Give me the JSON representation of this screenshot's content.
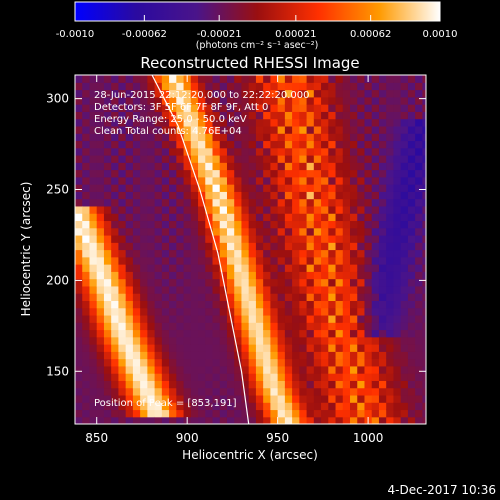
{
  "chart_data": {
    "type": "heatmap",
    "title": "Reconstructed RHESSI Image",
    "xlabel": "Heliocentric X (arcsec)",
    "ylabel": "Heliocentric Y (arcsec)",
    "xlim": [
      838,
      1032
    ],
    "ylim": [
      121,
      313
    ],
    "x_ticks": [
      850,
      900,
      950,
      1000
    ],
    "y_ticks": [
      150,
      200,
      250,
      300
    ],
    "info_lines": [
      "28-Jun-2015 22:12:20.000 to 22:22:20.000",
      "Detectors: 3F 5F 6F 7F 8F 9F, Att 0",
      "Energy Range: 25.0 - 50.0 keV",
      "Clean      Total counts: 4.76E+04"
    ],
    "peak_label": "Position of Peak = [853,191]",
    "peak_position": [
      853,
      191
    ],
    "colorbar": {
      "range": [
        -0.001,
        0.001
      ],
      "tick_labels": [
        "-0.0010",
        "-0.00062",
        "-0.00021",
        "0.00021",
        "0.00062",
        "0.0010"
      ],
      "units_label": "(photons cm⁻² s⁻¹ asec⁻²)",
      "colors": [
        "#0000ff",
        "#2a0aa0",
        "#4a148a",
        "#9a0f10",
        "#ff3000",
        "#ff9a00",
        "#ffffff"
      ]
    },
    "limb_curve": {
      "label": "",
      "points": [
        [
          878,
          318
        ],
        [
          895,
          285
        ],
        [
          907,
          250
        ],
        [
          917,
          215
        ],
        [
          924,
          180
        ],
        [
          930,
          150
        ],
        [
          934,
          121
        ]
      ]
    },
    "bright_bands": [
      {
        "name": "",
        "points": [
          [
            838,
            240
          ],
          [
            848,
            215
          ],
          [
            856,
            195
          ],
          [
            864,
            172
          ],
          [
            874,
            148
          ],
          [
            884,
            125
          ]
        ],
        "strength": 1.0,
        "width": 13
      },
      {
        "name": "",
        "points": [
          [
            890,
            318
          ],
          [
            905,
            280
          ],
          [
            918,
            245
          ],
          [
            928,
            210
          ],
          [
            938,
            175
          ],
          [
            948,
            140
          ],
          [
            956,
            121
          ]
        ],
        "strength": 0.95,
        "width": 11
      },
      {
        "name": "",
        "points": [
          [
            955,
            318
          ],
          [
            962,
            280
          ],
          [
            970,
            240
          ],
          [
            978,
            200
          ],
          [
            988,
            160
          ],
          [
            998,
            121
          ]
        ],
        "strength": 0.5,
        "width": 22
      }
    ],
    "dark_bands": [
      {
        "name": "",
        "points": [
          [
            1032,
            290
          ],
          [
            1022,
            250
          ],
          [
            1012,
            210
          ],
          [
            1005,
            170
          ]
        ],
        "strength": 0.6
      }
    ]
  },
  "footer": {
    "timestamp": "4-Dec-2017 10:36"
  }
}
